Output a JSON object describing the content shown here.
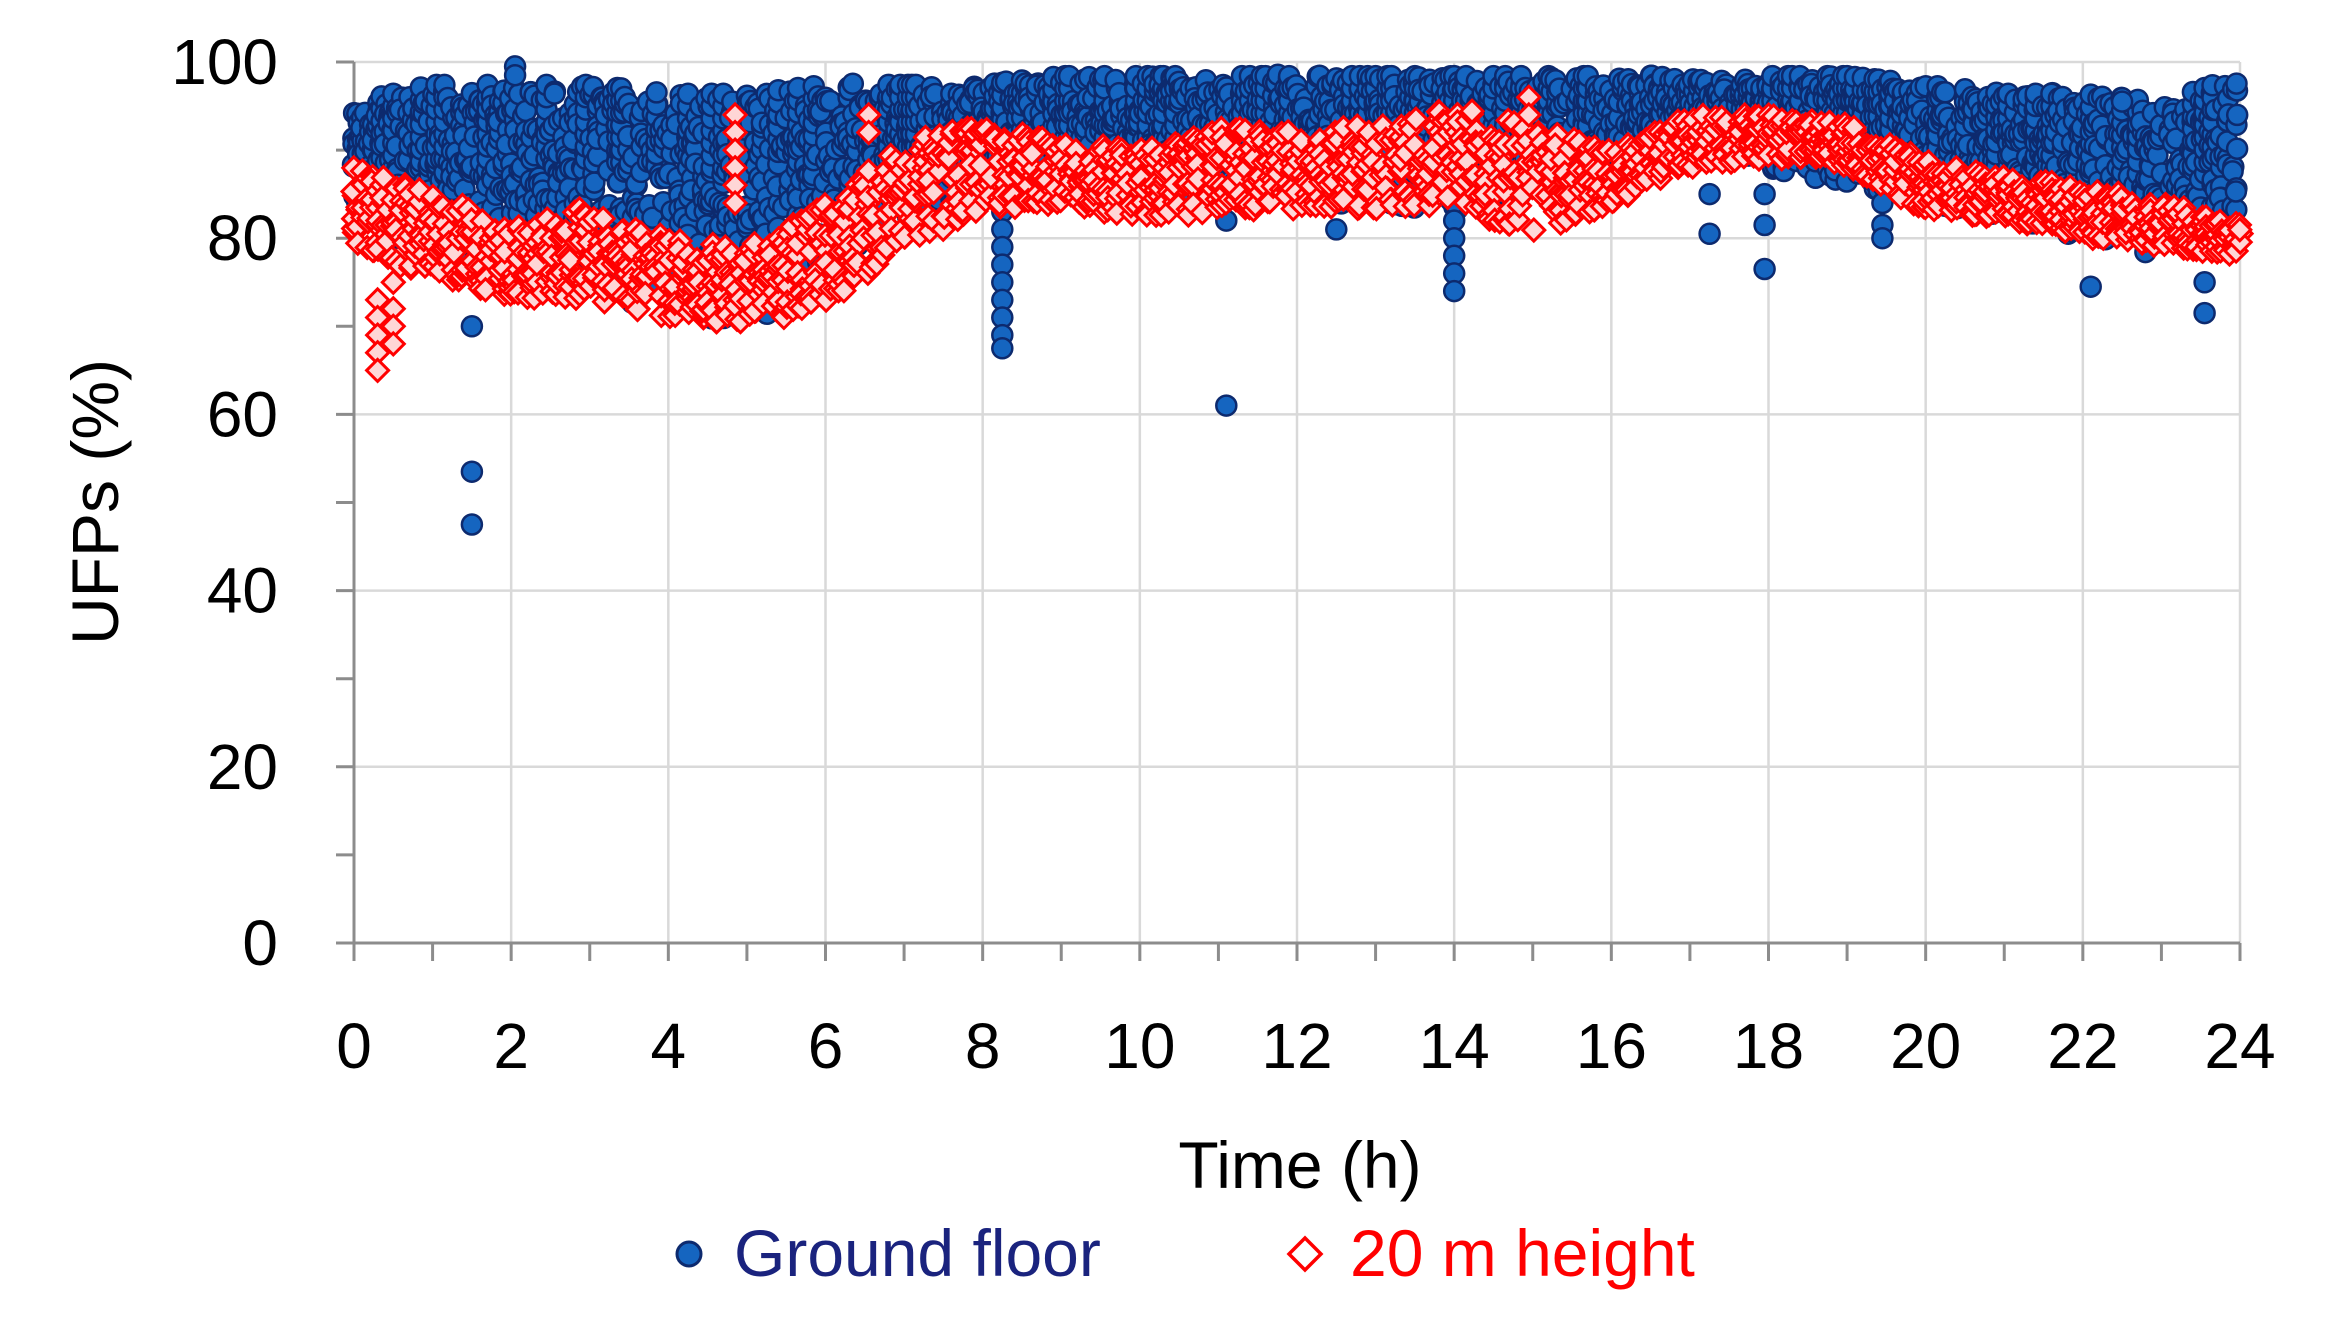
{
  "colors": {
    "ground_fill": "#1565c0",
    "ground_stroke": "#0d2a6e",
    "height_stroke": "#ff0000",
    "height_fill": "#ffd6d6",
    "grid": "#d9d9d9",
    "axis": "#8c8c8c",
    "legend_ground_text": "#1a237e",
    "legend_height_text": "#ff0000"
  },
  "chart_data": {
    "type": "scatter",
    "title": "",
    "xlabel": "Time (h)",
    "ylabel": "UFPs (%)",
    "xlim": [
      0,
      24
    ],
    "ylim": [
      0,
      100
    ],
    "x_ticks": [
      0,
      2,
      4,
      6,
      8,
      10,
      12,
      14,
      16,
      18,
      20,
      22,
      24
    ],
    "x_tick_labels": [
      "0",
      "2",
      "4",
      "6",
      "8",
      "10",
      "12",
      "14",
      "16",
      "18",
      "20",
      "22",
      "24"
    ],
    "y_ticks": [
      0,
      20,
      40,
      60,
      80,
      100
    ],
    "y_tick_labels": [
      "0",
      "20",
      "40",
      "60",
      "80",
      "100"
    ],
    "grid": true,
    "legend_position": "bottom",
    "series": [
      {
        "name": "Ground floor",
        "marker": "circle",
        "trend": {
          "x": [
            0,
            1,
            2,
            3,
            4,
            5,
            6,
            7,
            8,
            9,
            10,
            11,
            12,
            13,
            14,
            15,
            16,
            17,
            18,
            19,
            20,
            21,
            22,
            23,
            24
          ],
          "low": [
            82,
            78,
            80,
            74,
            72,
            70,
            74,
            82,
            84,
            86,
            84,
            84,
            84,
            84,
            82,
            84,
            86,
            90,
            88,
            86,
            84,
            82,
            80,
            78,
            80
          ],
          "high": [
            95,
            97,
            97,
            97,
            96,
            96,
            97,
            97,
            97,
            98,
            98,
            98,
            98,
            98,
            98,
            98,
            98,
            98,
            98,
            98,
            97,
            96,
            96,
            95,
            98
          ]
        },
        "spikes": [
          {
            "x": 1.5,
            "values": [
              70,
              53.5,
              47.5
            ]
          },
          {
            "x": 8.25,
            "values": [
              83,
              81,
              79,
              77,
              75,
              73,
              71,
              69,
              67.5
            ]
          },
          {
            "x": 11.1,
            "values": [
              61,
              82
            ]
          },
          {
            "x": 14.0,
            "values": [
              86,
              84,
              82,
              80,
              78,
              76,
              74
            ]
          },
          {
            "x": 17.25,
            "values": [
              85,
              80.5
            ]
          },
          {
            "x": 17.95,
            "values": [
              85,
              81.5,
              76.5
            ]
          },
          {
            "x": 19.45,
            "values": [
              84,
              81.5,
              80
            ]
          },
          {
            "x": 22.1,
            "values": [
              74.5
            ]
          },
          {
            "x": 22.5,
            "values": [
              95.5
            ]
          },
          {
            "x": 23.55,
            "values": [
              71.5,
              75
            ]
          },
          {
            "x": 2.05,
            "values": [
              99.5,
              98.5
            ]
          },
          {
            "x": 12.5,
            "values": [
              81
            ]
          }
        ]
      },
      {
        "name": "20 m height",
        "marker": "diamond",
        "trend": {
          "x": [
            0,
            1,
            2,
            3,
            4,
            5,
            6,
            7,
            8,
            9,
            10,
            11,
            12,
            13,
            14,
            15,
            16,
            17,
            18,
            19,
            20,
            21,
            22,
            23,
            24
          ],
          "low": [
            78,
            76,
            73,
            73,
            71,
            70,
            72,
            79,
            83,
            84,
            82,
            83,
            83,
            83,
            84,
            80,
            84,
            88,
            89,
            88,
            83,
            82,
            80,
            79,
            78
          ],
          "high": [
            88,
            86,
            81,
            84,
            80,
            79,
            84,
            91,
            93,
            91,
            90,
            93,
            92,
            93,
            95,
            93,
            90,
            94,
            94,
            93,
            89,
            87,
            86,
            84,
            82
          ]
        },
        "spikes": [
          {
            "x": 0.3,
            "values": [
              73,
              71,
              69,
              67,
              65
            ]
          },
          {
            "x": 0.5,
            "values": [
              75,
              72,
              70,
              68
            ]
          },
          {
            "x": 4.85,
            "values": [
              94,
              92,
              90,
              88,
              86,
              84
            ]
          },
          {
            "x": 6.55,
            "values": [
              94,
              92
            ]
          },
          {
            "x": 14.95,
            "values": [
              96,
              94
            ]
          }
        ]
      }
    ]
  },
  "legend": {
    "items": [
      {
        "label": "Ground floor"
      },
      {
        "label": "20 m height"
      }
    ]
  }
}
